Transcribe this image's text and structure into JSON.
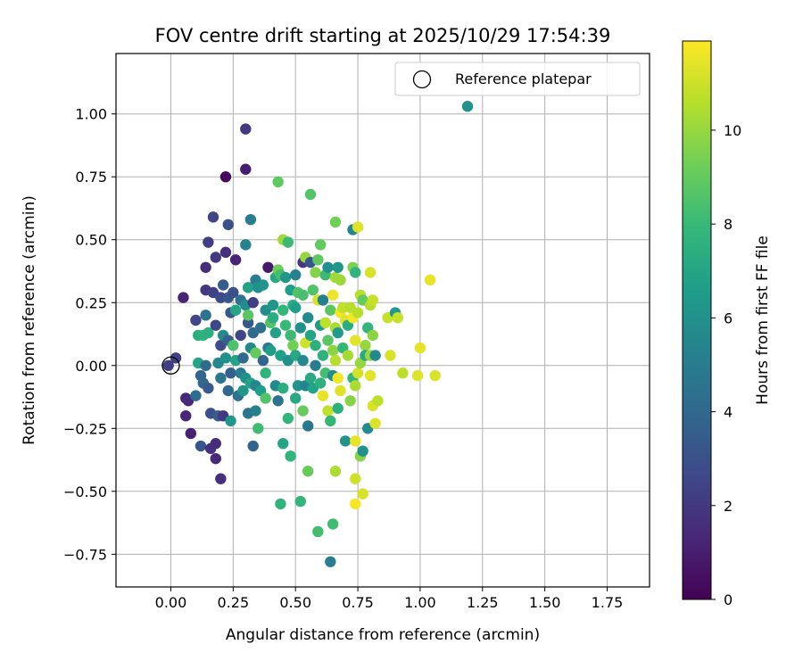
{
  "chart_data": {
    "type": "scatter",
    "title": "FOV centre drift starting at 2025/10/29 17:54:39",
    "xlabel": "Angular distance from reference (arcmin)",
    "ylabel": "Rotation from reference (arcmin)",
    "xlim": [
      -0.22,
      1.92
    ],
    "ylim": [
      -0.88,
      1.24
    ],
    "xticks": [
      0.0,
      0.25,
      0.5,
      0.75,
      1.0,
      1.25,
      1.5,
      1.75
    ],
    "xtick_labels": [
      "0.00",
      "0.25",
      "0.50",
      "0.75",
      "1.00",
      "1.25",
      "1.50",
      "1.75"
    ],
    "yticks": [
      -0.75,
      -0.5,
      -0.25,
      0.0,
      0.25,
      0.5,
      0.75,
      1.0
    ],
    "ytick_labels": [
      "−0.75",
      "−0.50",
      "−0.25",
      "0.00",
      "0.25",
      "0.50",
      "0.75",
      "1.00"
    ],
    "grid": true,
    "legend": {
      "position": "top-right",
      "entries": [
        {
          "label": "Reference platepar",
          "marker": "open-circle"
        }
      ]
    },
    "reference_point": {
      "x": 0.0,
      "y": 0.0
    },
    "colorbar": {
      "label": "Hours from first FF file",
      "colormap": "viridis",
      "range": [
        0,
        11.9
      ],
      "ticks": [
        0,
        2,
        4,
        6,
        8,
        10
      ],
      "tick_labels": [
        "0",
        "2",
        "4",
        "6",
        "8",
        "10"
      ]
    },
    "colormap_stops": [
      "#440154",
      "#482878",
      "#3e4989",
      "#31688e",
      "#26828e",
      "#1f9e89",
      "#35b779",
      "#6ece58",
      "#b5de2b",
      "#fde725"
    ],
    "points": [
      {
        "x": 0.02,
        "y": 0.03,
        "h": 2.3
      },
      {
        "x": -0.01,
        "y": 0.0,
        "h": 2.2
      },
      {
        "x": 0.05,
        "y": 0.27,
        "h": 1.2
      },
      {
        "x": 0.06,
        "y": -0.13,
        "h": 1.3
      },
      {
        "x": 0.06,
        "y": -0.2,
        "h": 1.3
      },
      {
        "x": 0.08,
        "y": -0.27,
        "h": 1.1
      },
      {
        "x": 0.07,
        "y": -0.14,
        "h": 1.4
      },
      {
        "x": 0.1,
        "y": 0.18,
        "h": 2.6
      },
      {
        "x": 0.1,
        "y": -0.12,
        "h": 4.2
      },
      {
        "x": 0.11,
        "y": 0.12,
        "h": 7.4
      },
      {
        "x": 0.11,
        "y": 0.01,
        "h": 7.0
      },
      {
        "x": 0.12,
        "y": -0.04,
        "h": 3.8
      },
      {
        "x": 0.12,
        "y": -0.32,
        "h": 3.2
      },
      {
        "x": 0.13,
        "y": 0.12,
        "h": 7.6
      },
      {
        "x": 0.13,
        "y": -0.07,
        "h": 3.9
      },
      {
        "x": 0.14,
        "y": 0.39,
        "h": 1.5
      },
      {
        "x": 0.14,
        "y": 0.3,
        "h": 1.9
      },
      {
        "x": 0.14,
        "y": 0.2,
        "h": 4.5
      },
      {
        "x": 0.15,
        "y": 0.49,
        "h": 2.2
      },
      {
        "x": 0.15,
        "y": 0.13,
        "h": 7.5
      },
      {
        "x": 0.14,
        "y": 0.0,
        "h": 4.1
      },
      {
        "x": 0.15,
        "y": -0.09,
        "h": 3.4
      },
      {
        "x": 0.16,
        "y": -0.33,
        "h": 1.6
      },
      {
        "x": 0.16,
        "y": -0.19,
        "h": 2.9
      },
      {
        "x": 0.17,
        "y": 0.59,
        "h": 2.5
      },
      {
        "x": 0.17,
        "y": 0.29,
        "h": 2.3
      },
      {
        "x": 0.18,
        "y": 0.43,
        "h": 2.0
      },
      {
        "x": 0.18,
        "y": 0.16,
        "h": 2.6
      },
      {
        "x": 0.18,
        "y": -0.31,
        "h": 1.5
      },
      {
        "x": 0.18,
        "y": -0.37,
        "h": 1.4
      },
      {
        "x": 0.19,
        "y": 0.01,
        "h": 5.5
      },
      {
        "x": 0.19,
        "y": -0.2,
        "h": 3.5
      },
      {
        "x": 0.2,
        "y": 0.27,
        "h": 2.7
      },
      {
        "x": 0.2,
        "y": 0.08,
        "h": 2.8
      },
      {
        "x": 0.2,
        "y": -0.05,
        "h": 4.7
      },
      {
        "x": 0.2,
        "y": -0.45,
        "h": 1.6
      },
      {
        "x": 0.21,
        "y": 0.32,
        "h": 3.4
      },
      {
        "x": 0.21,
        "y": 0.12,
        "h": 5.7
      },
      {
        "x": 0.21,
        "y": -0.2,
        "h": 2.0
      },
      {
        "x": 0.22,
        "y": 0.75,
        "h": 0.3
      },
      {
        "x": 0.22,
        "y": 0.45,
        "h": 1.6
      },
      {
        "x": 0.22,
        "y": 0.03,
        "h": 6.0
      },
      {
        "x": 0.23,
        "y": 0.56,
        "h": 3.0
      },
      {
        "x": 0.23,
        "y": 0.27,
        "h": 3.2
      },
      {
        "x": 0.23,
        "y": 0.1,
        "h": 3.7
      },
      {
        "x": 0.23,
        "y": -0.1,
        "h": 4.0
      },
      {
        "x": 0.24,
        "y": 0.21,
        "h": 3.3
      },
      {
        "x": 0.24,
        "y": -0.03,
        "h": 3.6
      },
      {
        "x": 0.24,
        "y": -0.22,
        "h": 6.3
      },
      {
        "x": 0.25,
        "y": 0.29,
        "h": 2.9
      },
      {
        "x": 0.25,
        "y": 0.08,
        "h": 8.5
      },
      {
        "x": 0.26,
        "y": 0.42,
        "h": 1.2
      },
      {
        "x": 0.26,
        "y": 0.22,
        "h": 7.0
      },
      {
        "x": 0.26,
        "y": 0.02,
        "h": 6.9
      },
      {
        "x": 0.27,
        "y": -0.12,
        "h": 4.4
      },
      {
        "x": 0.28,
        "y": 0.26,
        "h": 4.5
      },
      {
        "x": 0.28,
        "y": 0.12,
        "h": 2.5
      },
      {
        "x": 0.28,
        "y": -0.03,
        "h": 5.1
      },
      {
        "x": 0.29,
        "y": 0.03,
        "h": 4.1
      },
      {
        "x": 0.29,
        "y": -0.1,
        "h": 6.3
      },
      {
        "x": 0.3,
        "y": 0.94,
        "h": 2.0
      },
      {
        "x": 0.3,
        "y": 0.78,
        "h": 1.0
      },
      {
        "x": 0.3,
        "y": 0.48,
        "h": 5.2
      },
      {
        "x": 0.3,
        "y": 0.24,
        "h": 5.8
      },
      {
        "x": 0.3,
        "y": -0.05,
        "h": 5.9
      },
      {
        "x": 0.31,
        "y": 0.31,
        "h": 6.8
      },
      {
        "x": 0.31,
        "y": 0.17,
        "h": 3.3
      },
      {
        "x": 0.31,
        "y": 0.2,
        "h": 8.8
      },
      {
        "x": 0.31,
        "y": -0.19,
        "h": 4.7
      },
      {
        "x": 0.32,
        "y": 0.58,
        "h": 5.1
      },
      {
        "x": 0.32,
        "y": 0.07,
        "h": 5.6
      },
      {
        "x": 0.32,
        "y": -0.07,
        "h": 6.9
      },
      {
        "x": 0.33,
        "y": 0.25,
        "h": 2.2
      },
      {
        "x": 0.33,
        "y": 0.13,
        "h": 4.0
      },
      {
        "x": 0.33,
        "y": -0.32,
        "h": 3.8
      },
      {
        "x": 0.34,
        "y": 0.34,
        "h": 5.0
      },
      {
        "x": 0.34,
        "y": 0.05,
        "h": 9.0
      },
      {
        "x": 0.34,
        "y": -0.08,
        "h": 5.4
      },
      {
        "x": 0.34,
        "y": -0.18,
        "h": 5.2
      },
      {
        "x": 0.35,
        "y": 0.31,
        "h": 6.0
      },
      {
        "x": 0.35,
        "y": -0.25,
        "h": 8.2
      },
      {
        "x": 0.36,
        "y": 0.15,
        "h": 4.3
      },
      {
        "x": 0.36,
        "y": -0.1,
        "h": 6.6
      },
      {
        "x": 0.37,
        "y": 0.32,
        "h": 6.2
      },
      {
        "x": 0.37,
        "y": 0.02,
        "h": 3.9
      },
      {
        "x": 0.38,
        "y": 0.22,
        "h": 5.8
      },
      {
        "x": 0.38,
        "y": -0.03,
        "h": 7.7
      },
      {
        "x": 0.38,
        "y": -0.13,
        "h": 8.6
      },
      {
        "x": 0.39,
        "y": 0.39,
        "h": 0.8
      },
      {
        "x": 0.39,
        "y": 0.07,
        "h": 4.9
      },
      {
        "x": 0.4,
        "y": 0.17,
        "h": 8.6
      },
      {
        "x": 0.4,
        "y": 0.06,
        "h": 6.6
      },
      {
        "x": 0.41,
        "y": 0.24,
        "h": 6.3
      },
      {
        "x": 0.41,
        "y": 0.19,
        "h": 7.4
      },
      {
        "x": 0.42,
        "y": 0.35,
        "h": 7.1
      },
      {
        "x": 0.42,
        "y": 0.13,
        "h": 6.8
      },
      {
        "x": 0.42,
        "y": -0.08,
        "h": 5.6
      },
      {
        "x": 0.43,
        "y": 0.73,
        "h": 8.9
      },
      {
        "x": 0.43,
        "y": 0.38,
        "h": 9.2
      },
      {
        "x": 0.43,
        "y": -0.14,
        "h": 4.6
      },
      {
        "x": 0.44,
        "y": 0.36,
        "h": 8.3
      },
      {
        "x": 0.44,
        "y": 0.04,
        "h": 6.7
      },
      {
        "x": 0.44,
        "y": -0.55,
        "h": 7.7
      },
      {
        "x": 0.45,
        "y": 0.5,
        "h": 10.2
      },
      {
        "x": 0.45,
        "y": 0.22,
        "h": 7.9
      },
      {
        "x": 0.45,
        "y": -0.31,
        "h": 7.0
      },
      {
        "x": 0.45,
        "y": -0.09,
        "h": 7.4
      },
      {
        "x": 0.46,
        "y": 0.35,
        "h": 6.3
      },
      {
        "x": 0.46,
        "y": 0.16,
        "h": 8.0
      },
      {
        "x": 0.47,
        "y": 0.49,
        "h": 8.1
      },
      {
        "x": 0.47,
        "y": 0.02,
        "h": 6.0
      },
      {
        "x": 0.47,
        "y": -0.21,
        "h": 7.8
      },
      {
        "x": 0.48,
        "y": 0.3,
        "h": 6.6
      },
      {
        "x": 0.48,
        "y": 0.12,
        "h": 8.1
      },
      {
        "x": 0.48,
        "y": -0.36,
        "h": 7.7
      },
      {
        "x": 0.49,
        "y": 0.24,
        "h": 7.4
      },
      {
        "x": 0.49,
        "y": 0.08,
        "h": 9.3
      },
      {
        "x": 0.5,
        "y": 0.36,
        "h": 5.3
      },
      {
        "x": 0.5,
        "y": 0.23,
        "h": 6.6
      },
      {
        "x": 0.5,
        "y": 0.04,
        "h": 7.1
      },
      {
        "x": 0.5,
        "y": -0.13,
        "h": 7.2
      },
      {
        "x": 0.51,
        "y": 0.29,
        "h": 8.6
      },
      {
        "x": 0.51,
        "y": -0.08,
        "h": 6.1
      },
      {
        "x": 0.52,
        "y": 0.15,
        "h": 6.0
      },
      {
        "x": 0.52,
        "y": -0.54,
        "h": 7.8
      },
      {
        "x": 0.53,
        "y": 0.41,
        "h": 1.9
      },
      {
        "x": 0.53,
        "y": 0.28,
        "h": 8.4
      },
      {
        "x": 0.53,
        "y": 0.02,
        "h": 5.6
      },
      {
        "x": 0.53,
        "y": -0.18,
        "h": 9.1
      },
      {
        "x": 0.54,
        "y": 0.43,
        "h": 10.0
      },
      {
        "x": 0.54,
        "y": 0.09,
        "h": 11.0
      },
      {
        "x": 0.54,
        "y": -0.08,
        "h": 5.4
      },
      {
        "x": 0.55,
        "y": 0.19,
        "h": 5.7
      },
      {
        "x": 0.55,
        "y": -0.24,
        "h": 4.8
      },
      {
        "x": 0.55,
        "y": -0.42,
        "h": 9.1
      },
      {
        "x": 0.56,
        "y": 0.68,
        "h": 8.6
      },
      {
        "x": 0.56,
        "y": 0.41,
        "h": 3.1
      },
      {
        "x": 0.56,
        "y": 0.12,
        "h": 6.9
      },
      {
        "x": 0.56,
        "y": -0.05,
        "h": 7.2
      },
      {
        "x": 0.57,
        "y": 0.3,
        "h": 8.6
      },
      {
        "x": 0.57,
        "y": -0.09,
        "h": 6.8
      },
      {
        "x": 0.58,
        "y": 0.37,
        "h": 9.7
      },
      {
        "x": 0.58,
        "y": 0.08,
        "h": 7.5
      },
      {
        "x": 0.58,
        "y": 0.0,
        "h": 5.0
      },
      {
        "x": 0.59,
        "y": 0.42,
        "h": 8.9
      },
      {
        "x": 0.59,
        "y": 0.26,
        "h": 11.2
      },
      {
        "x": 0.59,
        "y": -0.66,
        "h": 8.3
      },
      {
        "x": 0.6,
        "y": 0.48,
        "h": 9.0
      },
      {
        "x": 0.6,
        "y": 0.16,
        "h": 6.4
      },
      {
        "x": 0.6,
        "y": -0.07,
        "h": 7.5
      },
      {
        "x": 0.61,
        "y": 0.26,
        "h": 5.2
      },
      {
        "x": 0.61,
        "y": 0.04,
        "h": 7.6
      },
      {
        "x": 0.61,
        "y": -0.12,
        "h": 11.5
      },
      {
        "x": 0.62,
        "y": 0.36,
        "h": 8.1
      },
      {
        "x": 0.62,
        "y": 0.17,
        "h": 10.7
      },
      {
        "x": 0.62,
        "y": -0.03,
        "h": 8.3
      },
      {
        "x": 0.63,
        "y": 0.39,
        "h": 5.9
      },
      {
        "x": 0.63,
        "y": 0.1,
        "h": 8.8
      },
      {
        "x": 0.63,
        "y": -0.18,
        "h": 10.8
      },
      {
        "x": 0.64,
        "y": 0.22,
        "h": 8.8
      },
      {
        "x": 0.64,
        "y": -0.22,
        "h": 7.9
      },
      {
        "x": 0.64,
        "y": -0.78,
        "h": 5.1
      },
      {
        "x": 0.65,
        "y": 0.28,
        "h": 11.6
      },
      {
        "x": 0.65,
        "y": 0.06,
        "h": 9.8
      },
      {
        "x": 0.65,
        "y": -0.04,
        "h": 5.9
      },
      {
        "x": 0.65,
        "y": -0.63,
        "h": 8.2
      },
      {
        "x": 0.66,
        "y": 0.57,
        "h": 9.3
      },
      {
        "x": 0.66,
        "y": 0.35,
        "h": 10.2
      },
      {
        "x": 0.66,
        "y": 0.15,
        "h": 10.3
      },
      {
        "x": 0.66,
        "y": 0.02,
        "h": 10.6
      },
      {
        "x": 0.66,
        "y": -0.42,
        "h": 10.4
      },
      {
        "x": 0.67,
        "y": 0.39,
        "h": 6.3
      },
      {
        "x": 0.67,
        "y": 0.13,
        "h": 6.5
      },
      {
        "x": 0.67,
        "y": -0.05,
        "h": 11.7
      },
      {
        "x": 0.67,
        "y": -0.17,
        "h": 7.5
      },
      {
        "x": 0.68,
        "y": 0.34,
        "h": 10.1
      },
      {
        "x": 0.68,
        "y": 0.21,
        "h": 11.7
      },
      {
        "x": 0.68,
        "y": -0.1,
        "h": 11.3
      },
      {
        "x": 0.69,
        "y": 0.23,
        "h": 10.8
      },
      {
        "x": 0.69,
        "y": 0.07,
        "h": 7.9
      },
      {
        "x": 0.7,
        "y": 0.18,
        "h": 11.3
      },
      {
        "x": 0.7,
        "y": -0.3,
        "h": 6.1
      },
      {
        "x": 0.71,
        "y": 0.16,
        "h": 7.4
      },
      {
        "x": 0.71,
        "y": 0.04,
        "h": 10.3
      },
      {
        "x": 0.72,
        "y": 0.23,
        "h": 10.6
      },
      {
        "x": 0.72,
        "y": -0.14,
        "h": 9.7
      },
      {
        "x": 0.73,
        "y": 0.54,
        "h": 5.4
      },
      {
        "x": 0.73,
        "y": 0.39,
        "h": 9.5
      },
      {
        "x": 0.73,
        "y": 0.19,
        "h": 11.7
      },
      {
        "x": 0.73,
        "y": -0.05,
        "h": 7.9
      },
      {
        "x": 0.74,
        "y": 0.37,
        "h": 7.7
      },
      {
        "x": 0.74,
        "y": 0.1,
        "h": 11.4
      },
      {
        "x": 0.74,
        "y": -0.08,
        "h": 10.4
      },
      {
        "x": 0.74,
        "y": -0.3,
        "h": 11.5
      },
      {
        "x": 0.74,
        "y": -0.45,
        "h": 11.0
      },
      {
        "x": 0.74,
        "y": -0.55,
        "h": 11.8
      },
      {
        "x": 0.75,
        "y": 0.55,
        "h": 11.3
      },
      {
        "x": 0.75,
        "y": 0.21,
        "h": 10.6
      },
      {
        "x": 0.75,
        "y": -0.03,
        "h": 11.1
      },
      {
        "x": 0.76,
        "y": 0.28,
        "h": 10.6
      },
      {
        "x": 0.76,
        "y": 0.01,
        "h": 10.0
      },
      {
        "x": 0.76,
        "y": -0.36,
        "h": 9.7
      },
      {
        "x": 0.77,
        "y": -0.51,
        "h": 11.2
      },
      {
        "x": 0.77,
        "y": 0.26,
        "h": 9.0
      },
      {
        "x": 0.77,
        "y": -0.34,
        "h": 6.0
      },
      {
        "x": 0.78,
        "y": 0.08,
        "h": 10.0
      },
      {
        "x": 0.78,
        "y": 0.04,
        "h": 7.2
      },
      {
        "x": 0.79,
        "y": 0.15,
        "h": 7.8
      },
      {
        "x": 0.79,
        "y": -0.25,
        "h": 5.7
      },
      {
        "x": 0.8,
        "y": 0.37,
        "h": 11.2
      },
      {
        "x": 0.8,
        "y": 0.24,
        "h": 10.6
      },
      {
        "x": 0.8,
        "y": 0.04,
        "h": 10.0
      },
      {
        "x": 0.8,
        "y": -0.04,
        "h": 11.4
      },
      {
        "x": 0.81,
        "y": 0.26,
        "h": 10.9
      },
      {
        "x": 0.81,
        "y": 0.12,
        "h": 9.8
      },
      {
        "x": 0.81,
        "y": -0.16,
        "h": 11.2
      },
      {
        "x": 0.82,
        "y": 0.04,
        "h": 5.6
      },
      {
        "x": 0.82,
        "y": -0.23,
        "h": 11.3
      },
      {
        "x": 0.83,
        "y": -0.14,
        "h": 10.7
      },
      {
        "x": 0.87,
        "y": 0.19,
        "h": 10.9
      },
      {
        "x": 0.88,
        "y": 0.04,
        "h": 11.2
      },
      {
        "x": 0.9,
        "y": 0.21,
        "h": 6.4
      },
      {
        "x": 0.91,
        "y": 0.19,
        "h": 10.9
      },
      {
        "x": 0.93,
        "y": -0.03,
        "h": 10.7
      },
      {
        "x": 0.99,
        "y": -0.04,
        "h": 11.3
      },
      {
        "x": 1.0,
        "y": 0.07,
        "h": 11.5
      },
      {
        "x": 1.04,
        "y": 0.34,
        "h": 11.5
      },
      {
        "x": 1.06,
        "y": -0.04,
        "h": 11.2
      },
      {
        "x": 1.19,
        "y": 1.03,
        "h": 6.1
      }
    ]
  }
}
